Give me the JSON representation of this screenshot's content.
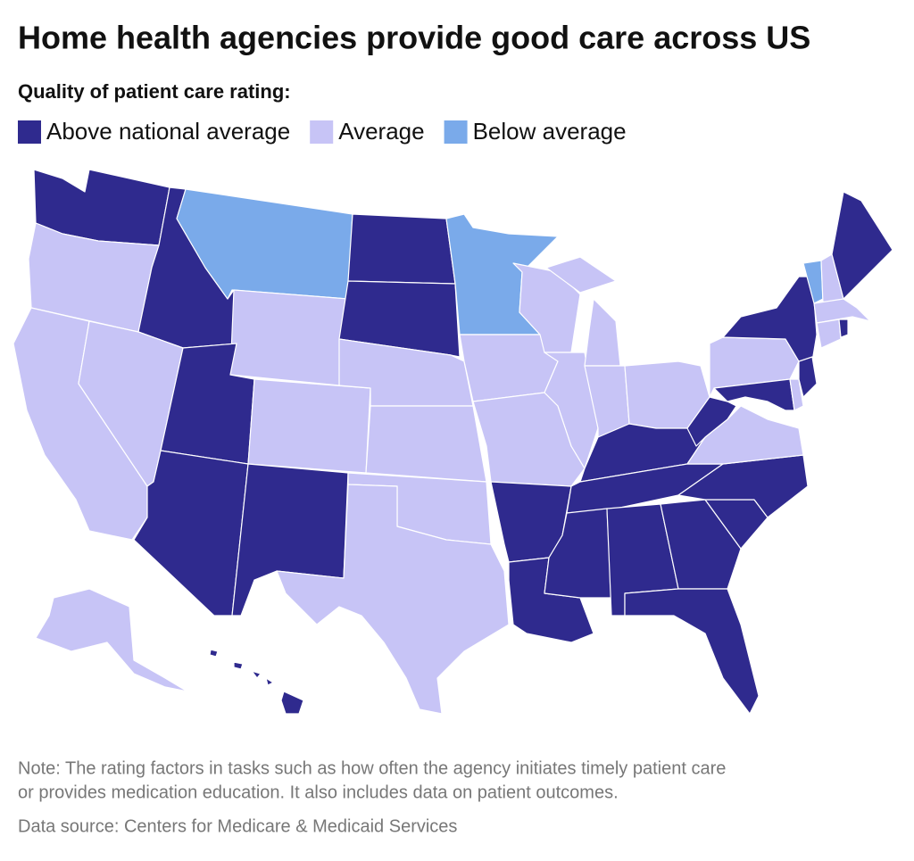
{
  "title": "Home health agencies provide good care across US",
  "subtitle": "Quality of patient care rating:",
  "legend": {
    "items": [
      {
        "label": "Above national average",
        "color": "#2f2a8e"
      },
      {
        "label": "Average",
        "color": "#c7c4f6"
      },
      {
        "label": "Below average",
        "color": "#7aaaea"
      }
    ]
  },
  "regions": [
    "Above national average",
    "Average",
    "Average",
    "Above national average",
    "Average",
    "Below average",
    "Average",
    "Above national average",
    "Above national average",
    "Average",
    "Above national average",
    "Above national average",
    "Above national average",
    "Average",
    "Average",
    "Average",
    "Average",
    "Below average",
    "Average",
    "Average",
    "Above national average",
    "Above national average",
    "Average",
    "Average",
    "Average",
    "Average",
    "Average",
    "Above national average",
    "Above national average",
    "Above national average",
    "Above national average",
    "Above national average",
    "Above national average",
    "Above national average",
    "Above national average",
    "Average",
    "Above national average",
    "Average",
    "Above national average",
    "Above national average",
    "Average",
    "Above national average",
    "Below average",
    "Average",
    "Above national average",
    "Average",
    "Average",
    "Above national average",
    "Average",
    "Above national average"
  ],
  "note": [
    "Note: The rating factors in tasks such as how often the agency initiates timely patient care",
    "or provides medication education. It also includes data on patient outcomes."
  ],
  "source": "Data source: Centers for Medicare & Medicaid Services"
}
